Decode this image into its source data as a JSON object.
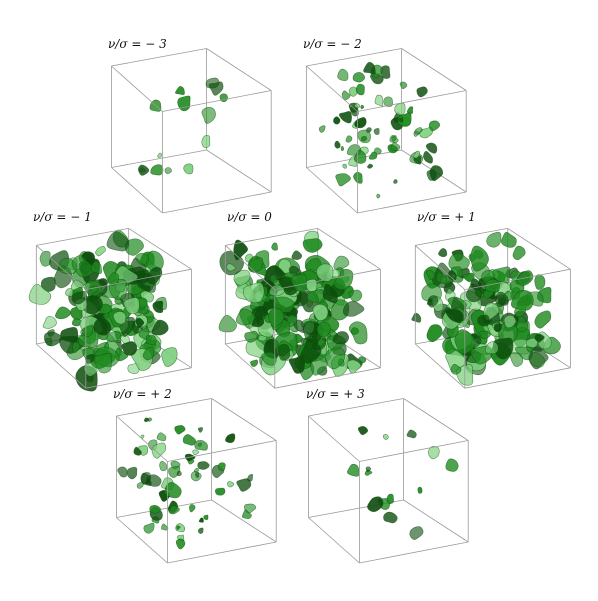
{
  "figure": {
    "panels": [
      {
        "label": "ν/σ = − 3",
        "density": 0.06
      },
      {
        "label": "ν/σ = − 2",
        "density": 0.35
      },
      {
        "label": "ν/σ = − 1",
        "density": 0.85
      },
      {
        "label": "ν/σ = 0",
        "density": 1.0
      },
      {
        "label": "ν/σ = + 1",
        "density": 0.8
      },
      {
        "label": "ν/σ = + 2",
        "density": 0.32
      },
      {
        "label": "ν/σ = + 3",
        "density": 0.06
      }
    ],
    "colors": {
      "isosurface": "#1f8a1f",
      "isosurface_dark": "#0c4d0c",
      "isosurface_light": "#7fd07f",
      "edge": "#9a9a9a"
    }
  }
}
